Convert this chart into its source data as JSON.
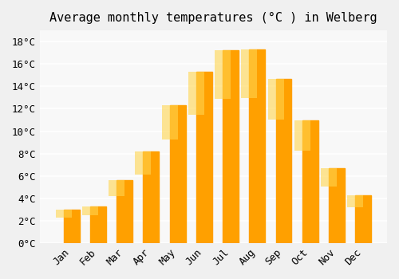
{
  "title": "Average monthly temperatures (°C ) in Welberg",
  "months": [
    "Jan",
    "Feb",
    "Mar",
    "Apr",
    "May",
    "Jun",
    "Jul",
    "Aug",
    "Sep",
    "Oct",
    "Nov",
    "Dec"
  ],
  "values": [
    3.0,
    3.3,
    5.6,
    8.2,
    12.3,
    15.3,
    17.2,
    17.3,
    14.7,
    11.0,
    6.7,
    4.3
  ],
  "bar_color": "#FFA500",
  "bar_color_top": "#FFD700",
  "ylim": [
    0,
    19
  ],
  "yticks": [
    0,
    2,
    4,
    6,
    8,
    10,
    12,
    14,
    16,
    18
  ],
  "background_color": "#f0f0f0",
  "plot_bg_color": "#f8f8f8",
  "grid_color": "#ffffff",
  "title_fontsize": 11,
  "tick_fontsize": 9
}
